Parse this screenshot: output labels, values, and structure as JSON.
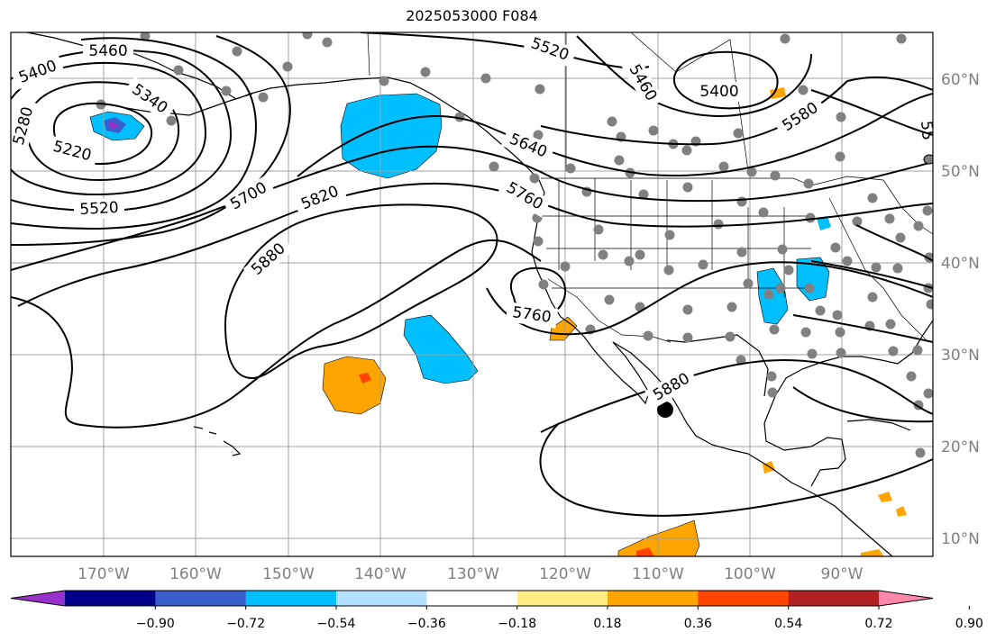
{
  "title": "2025053000 F084",
  "map": {
    "lon_ticks": [
      "170°W",
      "160°W",
      "150°W",
      "140°W",
      "130°W",
      "120°W",
      "110°W",
      "100°W",
      "90°W"
    ],
    "lat_ticks": [
      "60°N",
      "50°N",
      "40°N",
      "30°N",
      "20°N",
      "10°N"
    ],
    "contour_labels": [
      "5460",
      "5400",
      "5340",
      "5280",
      "5220",
      "5520",
      "5700",
      "5820",
      "5880",
      "5520",
      "5460",
      "5400",
      "5580",
      "5640",
      "5760",
      "5760",
      "5880",
      "55"
    ],
    "colors": {
      "contour": "#000000",
      "land": "#000000",
      "grid": "#a0a0a0",
      "station": "#808080",
      "neg_light": "#b3e0ff",
      "neg_mid": "#00bfff",
      "neg_dark": "#3a5fcd",
      "neg_deep": "#00008b",
      "neg_purple": "#9932cc",
      "pos_yellow": "#ffed86",
      "pos_orange": "#ffa500",
      "pos_redorange": "#ff4500",
      "pos_red": "#b22222",
      "pos_pink": "#ff88aa"
    }
  },
  "colorbar": {
    "ticks": [
      "−0.90",
      "−0.72",
      "−0.54",
      "−0.36",
      "−0.18",
      "0.18",
      "0.36",
      "0.54",
      "0.72",
      "0.90"
    ],
    "colors": [
      "#9932cc",
      "#00008b",
      "#3a5fcd",
      "#00bfff",
      "#b3e0ff",
      "#ffffff",
      "#ffed86",
      "#ffa500",
      "#ff4500",
      "#b22222",
      "#ff88aa"
    ]
  }
}
